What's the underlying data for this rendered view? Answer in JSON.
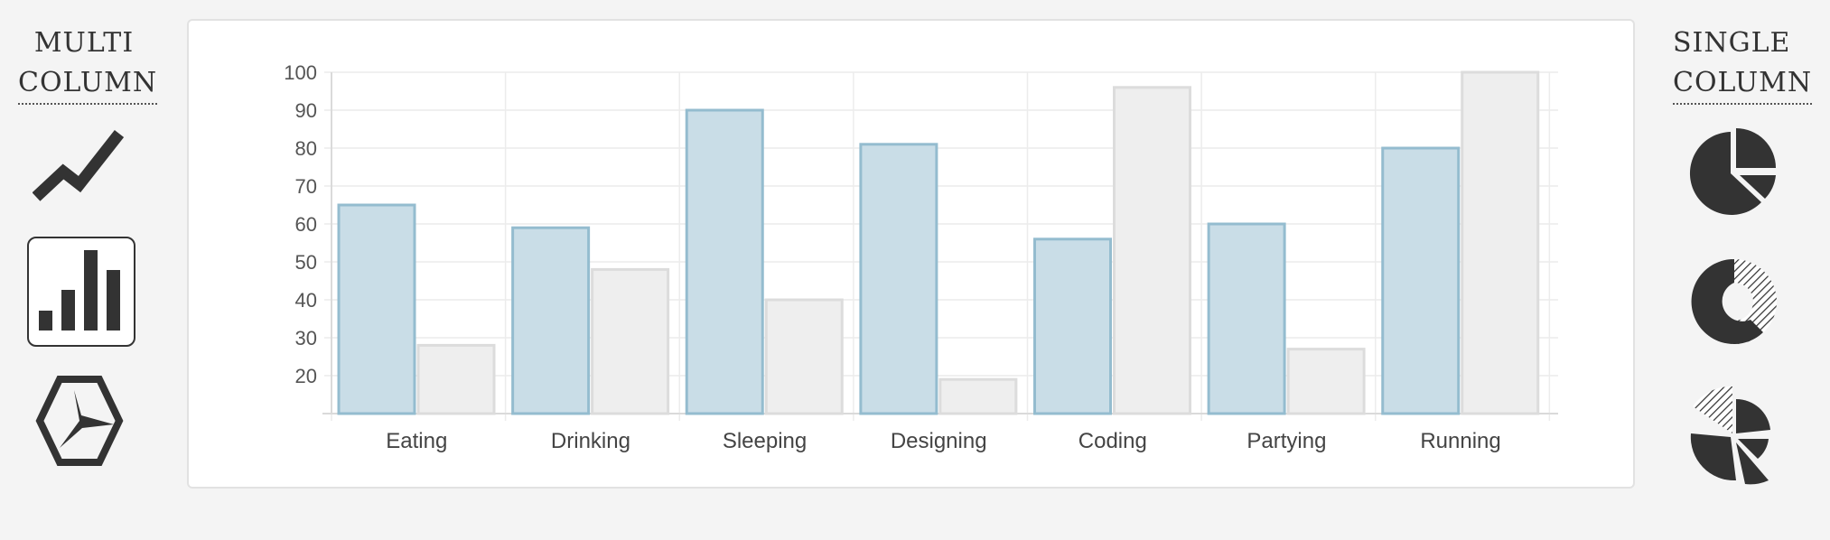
{
  "sidebar_left": {
    "heading_line1": "MULTI",
    "heading_line2": "COLUMN",
    "icons": [
      {
        "name": "line-chart-icon",
        "selected": false
      },
      {
        "name": "bar-chart-icon",
        "selected": true
      },
      {
        "name": "radar-chart-icon",
        "selected": false
      }
    ]
  },
  "sidebar_right": {
    "heading_line1": "SINGLE",
    "heading_line2": "COLUMN",
    "icons": [
      {
        "name": "pie-chart-icon"
      },
      {
        "name": "doughnut-chart-icon"
      },
      {
        "name": "polar-area-chart-icon"
      }
    ]
  },
  "chart_data": {
    "type": "bar",
    "categories": [
      "Eating",
      "Drinking",
      "Sleeping",
      "Designing",
      "Coding",
      "Partying",
      "Running"
    ],
    "series": [
      {
        "values": [
          65,
          59,
          90,
          81,
          56,
          60,
          80
        ],
        "fill": "#c9dde7",
        "stroke": "#94bccf"
      },
      {
        "values": [
          28,
          48,
          40,
          19,
          96,
          27,
          100
        ],
        "fill": "#eeeeee",
        "stroke": "#dcdcdc"
      }
    ],
    "ylim": [
      10,
      100
    ],
    "yticks": [
      20,
      30,
      40,
      50,
      60,
      70,
      80,
      90,
      100
    ],
    "grid": true,
    "title": "",
    "xlabel": "",
    "ylabel": ""
  }
}
